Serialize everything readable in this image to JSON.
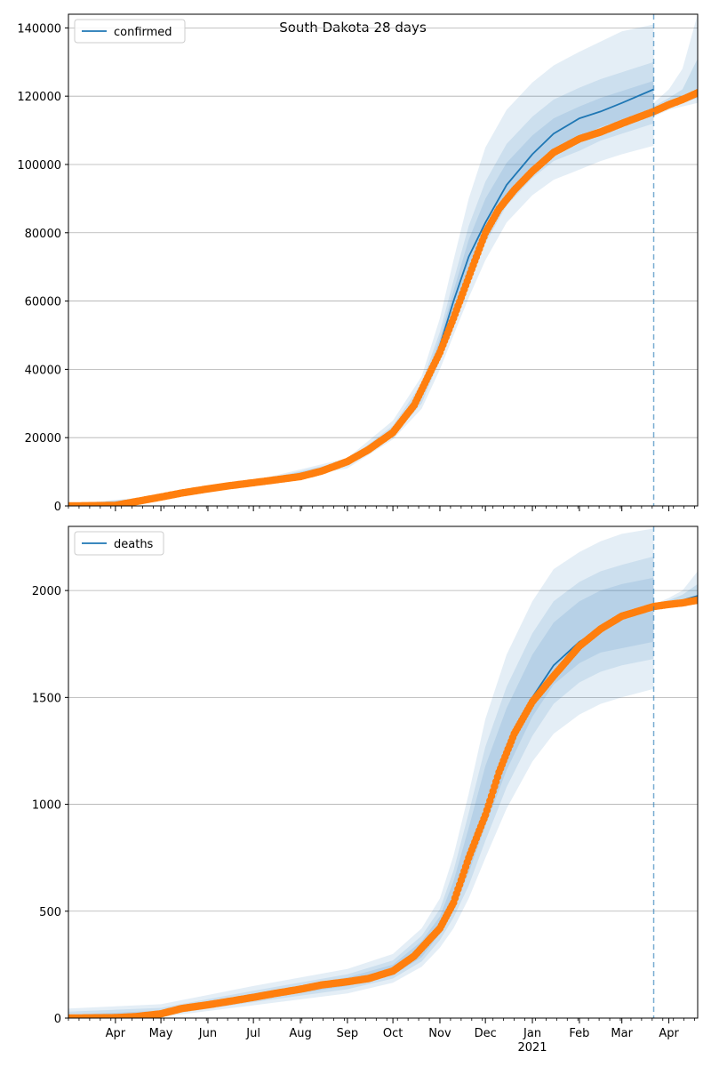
{
  "figure": {
    "title": "South Dakota 28 days",
    "colors": {
      "model": "#1f77b4",
      "observed": "#ff7f0e",
      "band": "#1f77b4",
      "grid": "#b0b0b0",
      "forecast_line": "#1f77b4"
    }
  },
  "x_axis": {
    "start_date": "2020-03-01",
    "end_date": "2021-04-20",
    "forecast_start": "2021-03-22",
    "month_labels": [
      {
        "date": "2020-04-01",
        "label": "Apr"
      },
      {
        "date": "2020-05-01",
        "label": "May"
      },
      {
        "date": "2020-06-01",
        "label": "Jun"
      },
      {
        "date": "2020-07-01",
        "label": "Jul"
      },
      {
        "date": "2020-08-01",
        "label": "Aug"
      },
      {
        "date": "2020-09-01",
        "label": "Sep"
      },
      {
        "date": "2020-10-01",
        "label": "Oct"
      },
      {
        "date": "2020-11-01",
        "label": "Nov"
      },
      {
        "date": "2020-12-01",
        "label": "Dec"
      },
      {
        "date": "2021-01-01",
        "label": "Jan"
      },
      {
        "date": "2021-02-01",
        "label": "Feb"
      },
      {
        "date": "2021-03-01",
        "label": "Mar"
      },
      {
        "date": "2021-04-01",
        "label": "Apr"
      }
    ],
    "year_label": {
      "date": "2021-01-01",
      "label": "2021"
    }
  },
  "chart_data": [
    {
      "type": "line",
      "legend": "confirmed",
      "ylim": [
        0,
        144000
      ],
      "yticks": [
        0,
        20000,
        40000,
        60000,
        80000,
        100000,
        120000,
        140000
      ],
      "grid": true,
      "legend_placement": "top-left",
      "model_series": [
        {
          "date": "2020-03-01",
          "value": 0
        },
        {
          "date": "2020-04-01",
          "value": 200
        },
        {
          "date": "2020-05-01",
          "value": 2600
        },
        {
          "date": "2020-06-01",
          "value": 5000
        },
        {
          "date": "2020-07-01",
          "value": 6800
        },
        {
          "date": "2020-08-01",
          "value": 8600
        },
        {
          "date": "2020-09-01",
          "value": 12500
        },
        {
          "date": "2020-10-01",
          "value": 22000
        },
        {
          "date": "2020-10-20",
          "value": 33000
        },
        {
          "date": "2020-11-01",
          "value": 47000
        },
        {
          "date": "2020-11-10",
          "value": 60000
        },
        {
          "date": "2020-11-20",
          "value": 73000
        },
        {
          "date": "2020-12-01",
          "value": 83000
        },
        {
          "date": "2020-12-15",
          "value": 94000
        },
        {
          "date": "2021-01-01",
          "value": 103000
        },
        {
          "date": "2021-01-15",
          "value": 109000
        },
        {
          "date": "2021-02-01",
          "value": 113500
        },
        {
          "date": "2021-02-15",
          "value": 115500
        },
        {
          "date": "2021-03-01",
          "value": 118000
        },
        {
          "date": "2021-03-22",
          "value": 122000
        }
      ],
      "observed_series": [
        {
          "date": "2020-03-01",
          "value": 0
        },
        {
          "date": "2020-04-01",
          "value": 150
        },
        {
          "date": "2020-04-15",
          "value": 1300
        },
        {
          "date": "2020-05-01",
          "value": 2600
        },
        {
          "date": "2020-05-15",
          "value": 3800
        },
        {
          "date": "2020-06-01",
          "value": 5000
        },
        {
          "date": "2020-06-15",
          "value": 5900
        },
        {
          "date": "2020-07-01",
          "value": 6800
        },
        {
          "date": "2020-07-15",
          "value": 7600
        },
        {
          "date": "2020-08-01",
          "value": 8600
        },
        {
          "date": "2020-08-15",
          "value": 10200
        },
        {
          "date": "2020-09-01",
          "value": 13000
        },
        {
          "date": "2020-09-15",
          "value": 16500
        },
        {
          "date": "2020-10-01",
          "value": 21500
        },
        {
          "date": "2020-10-15",
          "value": 29500
        },
        {
          "date": "2020-11-01",
          "value": 45000
        },
        {
          "date": "2020-11-10",
          "value": 55000
        },
        {
          "date": "2020-11-20",
          "value": 67000
        },
        {
          "date": "2020-12-01",
          "value": 80000
        },
        {
          "date": "2020-12-10",
          "value": 87000
        },
        {
          "date": "2020-12-20",
          "value": 92500
        },
        {
          "date": "2021-01-01",
          "value": 98000
        },
        {
          "date": "2021-01-15",
          "value": 103500
        },
        {
          "date": "2021-02-01",
          "value": 107500
        },
        {
          "date": "2021-02-15",
          "value": 109500
        },
        {
          "date": "2021-03-01",
          "value": 112000
        },
        {
          "date": "2021-03-22",
          "value": 115500
        },
        {
          "date": "2021-04-01",
          "value": 117500
        },
        {
          "date": "2021-04-10",
          "value": 119000
        },
        {
          "date": "2021-04-20",
          "value": 121000
        }
      ],
      "bands": {
        "dates": [
          "2020-03-01",
          "2020-05-01",
          "2020-07-01",
          "2020-09-01",
          "2020-10-01",
          "2020-10-20",
          "2020-11-01",
          "2020-11-10",
          "2020-11-20",
          "2020-12-01",
          "2020-12-15",
          "2021-01-01",
          "2021-01-15",
          "2021-02-01",
          "2021-02-15",
          "2021-03-01",
          "2021-03-22"
        ],
        "outer_upper": [
          500,
          3000,
          7400,
          14000,
          25000,
          38000,
          55000,
          72000,
          90000,
          105000,
          116000,
          124000,
          129000,
          133000,
          136000,
          139000,
          141000
        ],
        "outer_lower": [
          0,
          2200,
          6200,
          11000,
          19500,
          28500,
          40000,
          50000,
          61000,
          72000,
          83000,
          91000,
          95500,
          98500,
          101000,
          103000,
          105500
        ],
        "mid_upper": [
          300,
          2800,
          7100,
          13300,
          23500,
          36000,
          51000,
          66000,
          82000,
          95000,
          106000,
          114000,
          119000,
          122500,
          125000,
          127000,
          130000
        ],
        "mid_lower": [
          0,
          2400,
          6500,
          11700,
          20500,
          30000,
          43000,
          55000,
          66000,
          77000,
          88000,
          96000,
          101000,
          104000,
          107000,
          109000,
          112000
        ],
        "inner_upper": [
          200,
          2700,
          6950,
          12900,
          22700,
          34500,
          49000,
          63000,
          78000,
          90000,
          100500,
          108500,
          113500,
          117000,
          119500,
          121500,
          124500
        ],
        "inner_lower": [
          0,
          2500,
          6650,
          12100,
          21300,
          31500,
          45000,
          57000,
          69000,
          80000,
          91000,
          99000,
          104500,
          108000,
          111000,
          113000,
          116000
        ]
      },
      "post_bands": {
        "dates": [
          "2021-03-22",
          "2021-04-01",
          "2021-04-10",
          "2021-04-20"
        ],
        "outer_upper": [
          118000,
          122000,
          128000,
          144000
        ],
        "outer_lower": [
          114000,
          116000,
          117000,
          118000
        ],
        "inner_upper": [
          117000,
          119500,
          122000,
          131000
        ],
        "inner_lower": [
          115000,
          116800,
          118000,
          119500
        ]
      }
    },
    {
      "type": "line",
      "legend": "deaths",
      "ylim": [
        0,
        2300
      ],
      "yticks": [
        0,
        500,
        1000,
        1500,
        2000
      ],
      "grid": true,
      "legend_placement": "top-left",
      "model_series": [
        {
          "date": "2020-03-01",
          "value": 0
        },
        {
          "date": "2020-04-01",
          "value": 2
        },
        {
          "date": "2020-05-01",
          "value": 22
        },
        {
          "date": "2020-06-01",
          "value": 62
        },
        {
          "date": "2020-07-01",
          "value": 100
        },
        {
          "date": "2020-08-01",
          "value": 135
        },
        {
          "date": "2020-09-01",
          "value": 170
        },
        {
          "date": "2020-10-01",
          "value": 225
        },
        {
          "date": "2020-10-20",
          "value": 320
        },
        {
          "date": "2020-11-01",
          "value": 430
        },
        {
          "date": "2020-11-10",
          "value": 540
        },
        {
          "date": "2020-11-20",
          "value": 740
        },
        {
          "date": "2020-12-01",
          "value": 980
        },
        {
          "date": "2020-12-15",
          "value": 1250
        },
        {
          "date": "2021-01-01",
          "value": 1500
        },
        {
          "date": "2021-01-15",
          "value": 1650
        },
        {
          "date": "2021-02-01",
          "value": 1760
        },
        {
          "date": "2021-02-15",
          "value": 1820
        },
        {
          "date": "2021-03-01",
          "value": 1870
        },
        {
          "date": "2021-03-22",
          "value": 1920
        },
        {
          "date": "2021-04-01",
          "value": 1940
        },
        {
          "date": "2021-04-10",
          "value": 1955
        },
        {
          "date": "2021-04-20",
          "value": 1975
        }
      ],
      "observed_series": [
        {
          "date": "2020-03-01",
          "value": 0
        },
        {
          "date": "2020-04-01",
          "value": 2
        },
        {
          "date": "2020-04-15",
          "value": 7
        },
        {
          "date": "2020-05-01",
          "value": 20
        },
        {
          "date": "2020-05-15",
          "value": 45
        },
        {
          "date": "2020-06-01",
          "value": 62
        },
        {
          "date": "2020-06-15",
          "value": 78
        },
        {
          "date": "2020-07-01",
          "value": 97
        },
        {
          "date": "2020-07-15",
          "value": 115
        },
        {
          "date": "2020-08-01",
          "value": 135
        },
        {
          "date": "2020-08-15",
          "value": 155
        },
        {
          "date": "2020-09-01",
          "value": 170
        },
        {
          "date": "2020-09-15",
          "value": 185
        },
        {
          "date": "2020-10-01",
          "value": 220
        },
        {
          "date": "2020-10-15",
          "value": 290
        },
        {
          "date": "2020-11-01",
          "value": 420
        },
        {
          "date": "2020-11-10",
          "value": 540
        },
        {
          "date": "2020-11-20",
          "value": 750
        },
        {
          "date": "2020-12-01",
          "value": 950
        },
        {
          "date": "2020-12-10",
          "value": 1150
        },
        {
          "date": "2020-12-20",
          "value": 1330
        },
        {
          "date": "2021-01-01",
          "value": 1480
        },
        {
          "date": "2021-01-15",
          "value": 1600
        },
        {
          "date": "2021-02-01",
          "value": 1740
        },
        {
          "date": "2021-02-15",
          "value": 1820
        },
        {
          "date": "2021-03-01",
          "value": 1880
        },
        {
          "date": "2021-03-22",
          "value": 1925
        },
        {
          "date": "2021-04-01",
          "value": 1935
        },
        {
          "date": "2021-04-10",
          "value": 1942
        },
        {
          "date": "2021-04-20",
          "value": 1955
        }
      ],
      "bands": {
        "dates": [
          "2020-03-01",
          "2020-05-01",
          "2020-07-01",
          "2020-09-01",
          "2020-10-01",
          "2020-10-20",
          "2020-11-01",
          "2020-11-10",
          "2020-11-20",
          "2020-12-01",
          "2020-12-15",
          "2021-01-01",
          "2021-01-15",
          "2021-02-01",
          "2021-02-15",
          "2021-03-01",
          "2021-03-22"
        ],
        "outer_upper": [
          45,
          65,
          150,
          230,
          300,
          420,
          560,
          760,
          1050,
          1400,
          1700,
          1950,
          2100,
          2180,
          2230,
          2265,
          2290
        ],
        "outer_lower": [
          0,
          5,
          60,
          115,
          165,
          240,
          330,
          420,
          560,
          750,
          980,
          1200,
          1330,
          1420,
          1470,
          1500,
          1540
        ],
        "mid_upper": [
          30,
          48,
          128,
          205,
          270,
          385,
          510,
          690,
          960,
          1270,
          1550,
          1800,
          1950,
          2040,
          2090,
          2120,
          2160
        ],
        "mid_lower": [
          0,
          12,
          75,
          135,
          185,
          265,
          365,
          470,
          620,
          830,
          1080,
          1320,
          1470,
          1570,
          1620,
          1650,
          1680
        ],
        "inner_upper": [
          15,
          35,
          115,
          190,
          250,
          360,
          475,
          640,
          890,
          1180,
          1450,
          1700,
          1850,
          1950,
          2000,
          2030,
          2060
        ],
        "inner_lower": [
          0,
          18,
          85,
          150,
          200,
          285,
          395,
          510,
          680,
          900,
          1160,
          1410,
          1560,
          1660,
          1710,
          1730,
          1760
        ]
      },
      "post_bands": {
        "dates": [
          "2021-03-22",
          "2021-04-01",
          "2021-04-10",
          "2021-04-20"
        ],
        "outer_upper": [
          1935,
          1965,
          2000,
          2090
        ],
        "outer_lower": [
          1910,
          1920,
          1930,
          1940
        ],
        "inner_upper": [
          1930,
          1955,
          1980,
          2030
        ],
        "inner_lower": [
          1915,
          1928,
          1940,
          1955
        ]
      }
    }
  ]
}
